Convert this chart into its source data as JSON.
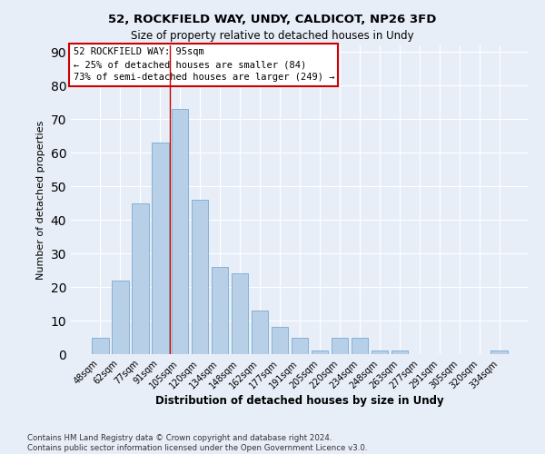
{
  "title1": "52, ROCKFIELD WAY, UNDY, CALDICOT, NP26 3FD",
  "title2": "Size of property relative to detached houses in Undy",
  "xlabel": "Distribution of detached houses by size in Undy",
  "ylabel": "Number of detached properties",
  "categories": [
    "48sqm",
    "62sqm",
    "77sqm",
    "91sqm",
    "105sqm",
    "120sqm",
    "134sqm",
    "148sqm",
    "162sqm",
    "177sqm",
    "191sqm",
    "205sqm",
    "220sqm",
    "234sqm",
    "248sqm",
    "263sqm",
    "277sqm",
    "291sqm",
    "305sqm",
    "320sqm",
    "334sqm"
  ],
  "values": [
    5,
    22,
    45,
    63,
    73,
    46,
    26,
    24,
    13,
    8,
    5,
    1,
    5,
    5,
    1,
    1,
    0,
    0,
    0,
    0,
    1
  ],
  "bar_color": "#b8cfe8",
  "bar_edge_color": "#7aaad0",
  "vline_x": 3.5,
  "vline_color": "#cc0000",
  "annotation_lines": [
    "52 ROCKFIELD WAY: 95sqm",
    "← 25% of detached houses are smaller (84)",
    "73% of semi-detached houses are larger (249) →"
  ],
  "box_color": "#cc0000",
  "ylim": [
    0,
    92
  ],
  "yticks": [
    0,
    10,
    20,
    30,
    40,
    50,
    60,
    70,
    80,
    90
  ],
  "footnote": "Contains HM Land Registry data © Crown copyright and database right 2024.\nContains public sector information licensed under the Open Government Licence v3.0.",
  "bg_color": "#e8eef8",
  "grid_color": "#ffffff"
}
